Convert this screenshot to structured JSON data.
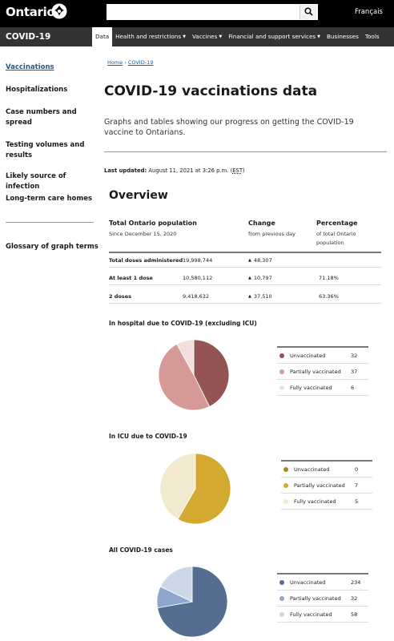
{
  "header": {
    "brand": "Ontario",
    "search_placeholder": "",
    "language": "Français"
  },
  "nav": {
    "site_title": "COVID-19",
    "items": [
      {
        "label": "Data",
        "dropdown": false,
        "active": true
      },
      {
        "label": "Health and restrictions",
        "dropdown": true,
        "active": false
      },
      {
        "label": "Vaccines",
        "dropdown": true,
        "active": false
      },
      {
        "label": "Financial and support services",
        "dropdown": true,
        "active": false
      },
      {
        "label": "Businesses",
        "dropdown": false,
        "active": false
      },
      {
        "label": "Tools",
        "dropdown": false,
        "active": false
      }
    ]
  },
  "sidebar": {
    "items": [
      {
        "label": "Vaccinations",
        "active": true
      },
      {
        "label": "Hospitalizations"
      },
      {
        "label": "Case numbers and spread"
      },
      {
        "label": "Testing volumes and results"
      },
      {
        "label": "Likely source of infection"
      },
      {
        "label": "Long-term care homes"
      }
    ],
    "glossary": "Glossary of graph terms"
  },
  "breadcrumb": {
    "home": "Home",
    "current": "COVID-19"
  },
  "page": {
    "title": "COVID-19 vaccinations data",
    "lead": "Graphs and tables showing our progress on getting the COVID-19 vaccine to Ontarians.",
    "updated_label": "Last updated:",
    "updated_value": "August 11, 2021 at 3:26 p.m.",
    "updated_tz": "EST"
  },
  "overview": {
    "title": "Overview",
    "headers": [
      {
        "title": "Total Ontario population",
        "sub": "Since December 15, 2020"
      },
      {
        "title": "Change",
        "sub": "from previous day"
      },
      {
        "title": "Percentage",
        "sub": "of total Ontario population"
      }
    ],
    "rows": [
      {
        "label": "Total doses administered",
        "total": "19,998,744",
        "change": "48,307",
        "pct": ""
      },
      {
        "label": "At least 1 dose",
        "total": "10,580,112",
        "change": "10,797",
        "pct": "71.18%"
      },
      {
        "label": "2 doses",
        "total": "9,418,632",
        "change": "37,510",
        "pct": "63.36%"
      }
    ]
  },
  "charts": [
    {
      "title": "In hospital due to COVID-19 (excluding ICU)",
      "colors": [
        "#955454",
        "#d59a96",
        "#f3dede"
      ],
      "legend": [
        {
          "label": "Unvaccinated",
          "value": 32
        },
        {
          "label": "Partially vaccinated",
          "value": 37
        },
        {
          "label": "Fully vaccinated",
          "value": 6
        }
      ]
    },
    {
      "title": "In ICU due to COVID-19",
      "colors": [
        "#a88a12",
        "#d4a92f",
        "#f3e9cf"
      ],
      "legend": [
        {
          "label": "Unvaccinated",
          "value": 0
        },
        {
          "label": "Partially vaccinated",
          "value": 7
        },
        {
          "label": "Fully vaccinated",
          "value": 5
        }
      ]
    },
    {
      "title": "All COVID-19 cases",
      "colors": [
        "#566d92",
        "#8fa7cf",
        "#ccd8e8"
      ],
      "legend": [
        {
          "label": "Unvaccinated",
          "value": 234
        },
        {
          "label": "Partially vaccinated",
          "value": 32
        },
        {
          "label": "Fully vaccinated",
          "value": 58
        }
      ]
    }
  ],
  "chart_data": [
    {
      "type": "pie",
      "title": "In hospital due to COVID-19 (excluding ICU)",
      "categories": [
        "Unvaccinated",
        "Partially vaccinated",
        "Fully vaccinated"
      ],
      "values": [
        32,
        37,
        6
      ]
    },
    {
      "type": "pie",
      "title": "In ICU due to COVID-19",
      "categories": [
        "Unvaccinated",
        "Partially vaccinated",
        "Fully vaccinated"
      ],
      "values": [
        0,
        7,
        5
      ]
    },
    {
      "type": "pie",
      "title": "All COVID-19 cases",
      "categories": [
        "Unvaccinated",
        "Partially vaccinated",
        "Fully vaccinated"
      ],
      "values": [
        234,
        32,
        58
      ]
    }
  ]
}
